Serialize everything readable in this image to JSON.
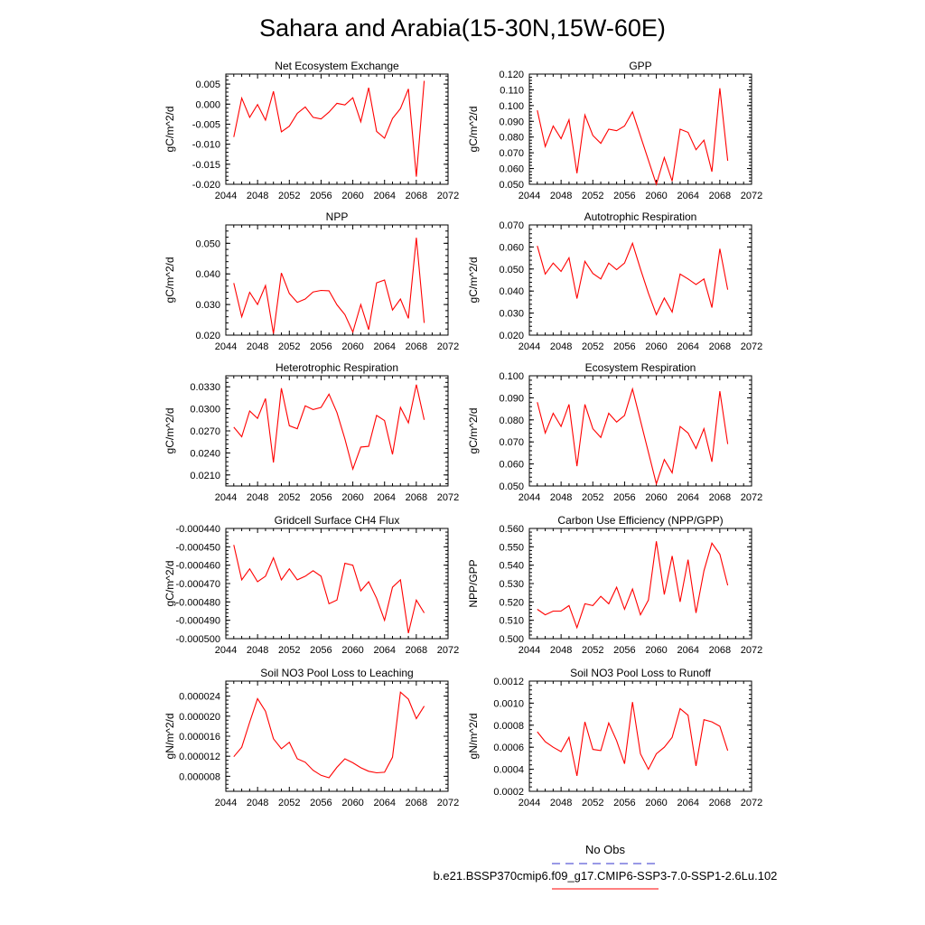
{
  "figure_title": "Sahara and Arabia(15-30N,15W-60E)",
  "legend": {
    "obs_label": "No Obs",
    "obs_color": "#3333cc",
    "model_label": "b.e21.BSSP370cmip6.f09_g17.CMIP6-SSP3-7.0-SSP1-2.6Lu.102",
    "model_color": "#ff0000"
  },
  "line_color": "#ff0000",
  "chart_data": [
    {
      "type": "line",
      "title": "Net Ecosystem Exchange",
      "ylabel": "gC/m^2/d",
      "xlim": [
        2044,
        2072
      ],
      "xticks": [
        "2044",
        "2048",
        "2052",
        "2056",
        "2060",
        "2064",
        "2068",
        "2072"
      ],
      "ylim": [
        -0.02,
        0.0075
      ],
      "yticks": [
        "0.005",
        "0.000",
        "-0.005",
        "-0.010",
        "-0.015",
        "-0.020"
      ],
      "ytick_values": [
        0.005,
        0.0,
        -0.005,
        -0.01,
        -0.015,
        -0.02
      ],
      "x": [
        2045,
        2046,
        2047,
        2048,
        2049,
        2050,
        2051,
        2052,
        2053,
        2054,
        2055,
        2056,
        2057,
        2058,
        2059,
        2060,
        2061,
        2062,
        2063,
        2064,
        2065,
        2066,
        2067,
        2068,
        2069
      ],
      "y": [
        -0.0082,
        0.0015,
        -0.0033,
        -0.0001,
        -0.004,
        0.0032,
        -0.0069,
        -0.0055,
        -0.0023,
        -0.0007,
        -0.0033,
        -0.0037,
        -0.002,
        0.0002,
        -0.0002,
        0.0016,
        -0.0044,
        0.0041,
        -0.0068,
        -0.0085,
        -0.0036,
        -0.0011,
        0.0038,
        -0.0181,
        0.0058
      ]
    },
    {
      "type": "line",
      "title": "GPP",
      "ylabel": "gC/m^2/d",
      "xlim": [
        2044,
        2072
      ],
      "xticks": [
        "2044",
        "2048",
        "2052",
        "2056",
        "2060",
        "2064",
        "2068",
        "2072"
      ],
      "ylim": [
        0.05,
        0.12
      ],
      "yticks": [
        "0.120",
        "0.110",
        "0.100",
        "0.090",
        "0.080",
        "0.070",
        "0.060",
        "0.050"
      ],
      "ytick_values": [
        0.12,
        0.11,
        0.1,
        0.09,
        0.08,
        0.07,
        0.06,
        0.05
      ],
      "x": [
        2045,
        2046,
        2047,
        2048,
        2049,
        2050,
        2051,
        2052,
        2053,
        2054,
        2055,
        2056,
        2057,
        2060,
        2061,
        2062,
        2063,
        2064,
        2065,
        2066,
        2067,
        2068,
        2069
      ],
      "y": [
        0.097,
        0.074,
        0.087,
        0.079,
        0.091,
        0.057,
        0.094,
        0.081,
        0.076,
        0.085,
        0.084,
        0.087,
        0.096,
        0.05,
        0.067,
        0.052,
        0.085,
        0.083,
        0.072,
        0.078,
        0.058,
        0.111,
        0.065
      ]
    },
    {
      "type": "line",
      "title": "NPP",
      "ylabel": "gC/m^2/d",
      "xlim": [
        2044,
        2072
      ],
      "xticks": [
        "2044",
        "2048",
        "2052",
        "2056",
        "2060",
        "2064",
        "2068",
        "2072"
      ],
      "ylim": [
        0.02,
        0.056
      ],
      "yticks": [
        "0.050",
        "0.040",
        "0.030",
        "0.020"
      ],
      "ytick_values": [
        0.05,
        0.04,
        0.03,
        0.02
      ],
      "x": [
        2045,
        2046,
        2047,
        2048,
        2049,
        2050,
        2051,
        2052,
        2053,
        2054,
        2055,
        2056,
        2057,
        2058,
        2059,
        2060,
        2061,
        2062,
        2063,
        2064,
        2065,
        2066,
        2067,
        2068,
        2069
      ],
      "y": [
        0.037,
        0.026,
        0.034,
        0.03,
        0.0362,
        0.0205,
        0.0403,
        0.0336,
        0.0307,
        0.0318,
        0.0341,
        0.0346,
        0.0345,
        0.0299,
        0.0267,
        0.021,
        0.03,
        0.0218,
        0.0371,
        0.038,
        0.0282,
        0.0318,
        0.0255,
        0.0518,
        0.024
      ]
    },
    {
      "type": "line",
      "title": "Autotrophic Respiration",
      "ylabel": "gC/m^2/d",
      "xlim": [
        2044,
        2072
      ],
      "xticks": [
        "2044",
        "2048",
        "2052",
        "2056",
        "2060",
        "2064",
        "2068",
        "2072"
      ],
      "ylim": [
        0.02,
        0.07
      ],
      "yticks": [
        "0.070",
        "0.060",
        "0.050",
        "0.040",
        "0.030",
        "0.020"
      ],
      "ytick_values": [
        0.07,
        0.06,
        0.05,
        0.04,
        0.03,
        0.02
      ],
      "x": [
        2045,
        2046,
        2047,
        2048,
        2049,
        2050,
        2051,
        2052,
        2053,
        2054,
        2055,
        2056,
        2057,
        2058,
        2059,
        2060,
        2061,
        2062,
        2063,
        2064,
        2065,
        2066,
        2067,
        2068,
        2069
      ],
      "y": [
        0.0605,
        0.0477,
        0.0527,
        0.0489,
        0.0551,
        0.0366,
        0.0535,
        0.048,
        0.0455,
        0.0527,
        0.0497,
        0.0527,
        0.0617,
        0.05,
        0.039,
        0.0293,
        0.0368,
        0.0305,
        0.0477,
        0.0455,
        0.043,
        0.0455,
        0.0325,
        0.0592,
        0.0406
      ]
    },
    {
      "type": "line",
      "title": "Heterotrophic Respiration",
      "ylabel": "gC/m^2/d",
      "xlim": [
        2044,
        2072
      ],
      "xticks": [
        "2044",
        "2048",
        "2052",
        "2056",
        "2060",
        "2064",
        "2068",
        "2072"
      ],
      "ylim": [
        0.0195,
        0.0345
      ],
      "yticks": [
        "0.0330",
        "0.0300",
        "0.0270",
        "0.0240",
        "0.0210"
      ],
      "ytick_values": [
        0.033,
        0.03,
        0.027,
        0.024,
        0.021
      ],
      "x": [
        2045,
        2046,
        2047,
        2048,
        2049,
        2050,
        2051,
        2052,
        2053,
        2054,
        2055,
        2056,
        2057,
        2058,
        2059,
        2060,
        2061,
        2062,
        2063,
        2064,
        2065,
        2066,
        2067,
        2068,
        2069
      ],
      "y": [
        0.0275,
        0.0262,
        0.0297,
        0.0287,
        0.0314,
        0.0227,
        0.0328,
        0.0277,
        0.0273,
        0.0304,
        0.0299,
        0.0302,
        0.032,
        0.0295,
        0.0259,
        0.0218,
        0.0248,
        0.0249,
        0.0291,
        0.0284,
        0.0238,
        0.0302,
        0.0281,
        0.0333,
        0.0285
      ]
    },
    {
      "type": "line",
      "title": "Ecosystem Respiration",
      "ylabel": "gC/m^2/d",
      "xlim": [
        2044,
        2072
      ],
      "xticks": [
        "2044",
        "2048",
        "2052",
        "2056",
        "2060",
        "2064",
        "2068",
        "2072"
      ],
      "ylim": [
        0.05,
        0.1
      ],
      "yticks": [
        "0.100",
        "0.090",
        "0.080",
        "0.070",
        "0.060",
        "0.050"
      ],
      "ytick_values": [
        0.1,
        0.09,
        0.08,
        0.07,
        0.06,
        0.05
      ],
      "x": [
        2045,
        2046,
        2047,
        2048,
        2049,
        2050,
        2051,
        2052,
        2053,
        2054,
        2055,
        2056,
        2057,
        2060,
        2061,
        2062,
        2063,
        2064,
        2065,
        2066,
        2067,
        2068,
        2069
      ],
      "y": [
        0.088,
        0.074,
        0.083,
        0.077,
        0.087,
        0.059,
        0.087,
        0.076,
        0.072,
        0.083,
        0.079,
        0.082,
        0.094,
        0.051,
        0.062,
        0.056,
        0.077,
        0.074,
        0.067,
        0.076,
        0.061,
        0.093,
        0.069
      ]
    },
    {
      "type": "line",
      "title": "Gridcell Surface CH4 Flux",
      "ylabel": "gC/m^2/d",
      "xlim": [
        2044,
        2072
      ],
      "xticks": [
        "2044",
        "2048",
        "2052",
        "2056",
        "2060",
        "2064",
        "2068",
        "2072"
      ],
      "ylim": [
        -0.0005,
        -0.00044
      ],
      "yticks": [
        "-0.000440",
        "-0.000450",
        "-0.000460",
        "-0.000470",
        "-0.000480",
        "-0.000490",
        "-0.000500"
      ],
      "ytick_values": [
        -0.00044,
        -0.00045,
        -0.00046,
        -0.00047,
        -0.00048,
        -0.00049,
        -0.0005
      ],
      "x": [
        2045,
        2046,
        2047,
        2048,
        2049,
        2050,
        2051,
        2052,
        2053,
        2054,
        2055,
        2056,
        2057,
        2058,
        2059,
        2060,
        2061,
        2062,
        2063,
        2064,
        2065,
        2066,
        2067,
        2068,
        2069
      ],
      "y": [
        -0.000449,
        -0.000468,
        -0.000462,
        -0.000469,
        -0.000466,
        -0.000456,
        -0.000468,
        -0.000462,
        -0.000468,
        -0.000466,
        -0.000463,
        -0.000466,
        -0.000481,
        -0.000479,
        -0.000459,
        -0.00046,
        -0.000474,
        -0.000469,
        -0.000478,
        -0.00049,
        -0.000472,
        -0.000468,
        -0.000497,
        -0.000479,
        -0.000486
      ]
    },
    {
      "type": "line",
      "title": "Carbon Use Efficiency (NPP/GPP)",
      "ylabel": "NPP/GPP",
      "xlim": [
        2044,
        2072
      ],
      "xticks": [
        "2044",
        "2048",
        "2052",
        "2056",
        "2060",
        "2064",
        "2068",
        "2072"
      ],
      "ylim": [
        0.5,
        0.56
      ],
      "yticks": [
        "0.560",
        "0.550",
        "0.540",
        "0.530",
        "0.520",
        "0.510",
        "0.500"
      ],
      "ytick_values": [
        0.56,
        0.55,
        0.54,
        0.53,
        0.52,
        0.51,
        0.5
      ],
      "x": [
        2045,
        2046,
        2047,
        2048,
        2049,
        2050,
        2051,
        2052,
        2053,
        2054,
        2055,
        2056,
        2057,
        2058,
        2059,
        2060,
        2061,
        2062,
        2063,
        2064,
        2065,
        2066,
        2067,
        2068,
        2069
      ],
      "y": [
        0.516,
        0.513,
        0.515,
        0.515,
        0.518,
        0.506,
        0.519,
        0.518,
        0.523,
        0.519,
        0.528,
        0.516,
        0.527,
        0.513,
        0.521,
        0.553,
        0.524,
        0.545,
        0.52,
        0.543,
        0.514,
        0.537,
        0.552,
        0.546,
        0.529
      ]
    },
    {
      "type": "line",
      "title": "Soil NO3 Pool Loss to Leaching",
      "ylabel": "gN/m^2/d",
      "xlim": [
        2044,
        2072
      ],
      "xticks": [
        "2044",
        "2048",
        "2052",
        "2056",
        "2060",
        "2064",
        "2068",
        "2072"
      ],
      "ylim": [
        5e-06,
        2.7e-05
      ],
      "yticks": [
        "0.000024",
        "0.000020",
        "0.000016",
        "0.000012",
        "0.000008"
      ],
      "ytick_values": [
        2.4e-05,
        2e-05,
        1.6e-05,
        1.2e-05,
        8e-06
      ],
      "x": [
        2045,
        2046,
        2047,
        2048,
        2049,
        2050,
        2051,
        2052,
        2053,
        2054,
        2055,
        2056,
        2057,
        2058,
        2059,
        2060,
        2061,
        2062,
        2063,
        2064,
        2065,
        2066,
        2067,
        2068,
        2069
      ],
      "y": [
        1.19e-05,
        1.38e-05,
        1.88e-05,
        2.35e-05,
        2.1e-05,
        1.55e-05,
        1.35e-05,
        1.48e-05,
        1.15e-05,
        1.08e-05,
        9.2e-06,
        8.2e-06,
        7.7e-06,
        9.8e-06,
        1.15e-05,
        1.07e-05,
        9.7e-06,
        9e-06,
        8.7e-06,
        8.8e-06,
        1.18e-05,
        2.48e-05,
        2.34e-05,
        1.95e-05,
        2.2e-05
      ]
    },
    {
      "type": "line",
      "title": "Soil NO3 Pool Loss to Runoff",
      "ylabel": "gN/m^2/d",
      "xlim": [
        2044,
        2072
      ],
      "xticks": [
        "2044",
        "2048",
        "2052",
        "2056",
        "2060",
        "2064",
        "2068",
        "2072"
      ],
      "ylim": [
        0.0002,
        0.0012
      ],
      "yticks": [
        "0.0012",
        "0.0010",
        "0.0008",
        "0.0006",
        "0.0004",
        "0.0002"
      ],
      "ytick_values": [
        0.0012,
        0.001,
        0.0008,
        0.0006,
        0.0004,
        0.0002
      ],
      "x": [
        2045,
        2046,
        2047,
        2048,
        2049,
        2050,
        2051,
        2052,
        2053,
        2054,
        2055,
        2056,
        2057,
        2058,
        2059,
        2060,
        2061,
        2062,
        2063,
        2064,
        2065,
        2066,
        2067,
        2068,
        2069
      ],
      "y": [
        0.00074,
        0.00065,
        0.0006,
        0.00056,
        0.00069,
        0.00034,
        0.00083,
        0.00058,
        0.00057,
        0.00082,
        0.00066,
        0.00045,
        0.00101,
        0.00054,
        0.0004,
        0.00054,
        0.0006,
        0.00069,
        0.00095,
        0.00089,
        0.00043,
        0.00085,
        0.00083,
        0.00079,
        0.00057
      ]
    }
  ]
}
